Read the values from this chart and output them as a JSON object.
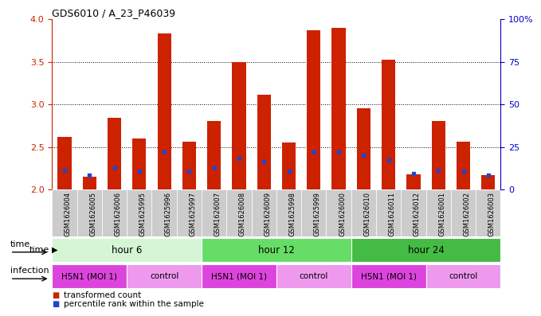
{
  "title": "GDS6010 / A_23_P46039",
  "samples": [
    "GSM1626004",
    "GSM1626005",
    "GSM1626006",
    "GSM1625995",
    "GSM1625996",
    "GSM1625997",
    "GSM1626007",
    "GSM1626008",
    "GSM1626009",
    "GSM1625998",
    "GSM1625999",
    "GSM1626000",
    "GSM1626010",
    "GSM1626011",
    "GSM1626012",
    "GSM1626001",
    "GSM1626002",
    "GSM1626003"
  ],
  "bar_values": [
    2.62,
    2.15,
    2.84,
    2.6,
    3.83,
    2.56,
    2.8,
    3.5,
    3.11,
    2.55,
    3.87,
    3.9,
    2.95,
    3.52,
    2.18,
    2.8,
    2.56,
    2.17
  ],
  "blue_values": [
    2.23,
    2.17,
    2.25,
    2.22,
    2.44,
    2.22,
    2.25,
    2.37,
    2.33,
    2.22,
    2.44,
    2.44,
    2.4,
    2.35,
    2.19,
    2.23,
    2.22,
    2.17
  ],
  "ylim": [
    2.0,
    4.0
  ],
  "yticks": [
    2.0,
    2.5,
    3.0,
    3.5,
    4.0
  ],
  "right_ytick_vals": [
    2.0,
    2.5,
    3.0,
    3.5,
    4.0
  ],
  "right_ytick_labels": [
    "0",
    "25",
    "50",
    "75",
    "100%"
  ],
  "time_groups": [
    {
      "label": "hour 6",
      "start": 0,
      "end": 6,
      "color": "#d5f5d5"
    },
    {
      "label": "hour 12",
      "start": 6,
      "end": 12,
      "color": "#66dd66"
    },
    {
      "label": "hour 24",
      "start": 12,
      "end": 18,
      "color": "#44bb44"
    }
  ],
  "infection_groups": [
    {
      "label": "H5N1 (MOI 1)",
      "start": 0,
      "end": 3,
      "color": "#dd44dd"
    },
    {
      "label": "control",
      "start": 3,
      "end": 6,
      "color": "#ee99ee"
    },
    {
      "label": "H5N1 (MOI 1)",
      "start": 6,
      "end": 9,
      "color": "#dd44dd"
    },
    {
      "label": "control",
      "start": 9,
      "end": 12,
      "color": "#ee99ee"
    },
    {
      "label": "H5N1 (MOI 1)",
      "start": 12,
      "end": 15,
      "color": "#dd44dd"
    },
    {
      "label": "control",
      "start": 15,
      "end": 18,
      "color": "#ee99ee"
    }
  ],
  "bar_color": "#cc2200",
  "blue_color": "#2244cc",
  "bar_width": 0.55,
  "bg_color": "#ffffff",
  "label_color_left": "#cc2200",
  "label_color_right": "#0000cc",
  "time_label": "time",
  "infection_label": "infection",
  "sample_bg_color": "#cccccc",
  "legend_items": [
    {
      "color": "#cc2200",
      "label": "transformed count"
    },
    {
      "color": "#2244cc",
      "label": "percentile rank within the sample"
    }
  ]
}
